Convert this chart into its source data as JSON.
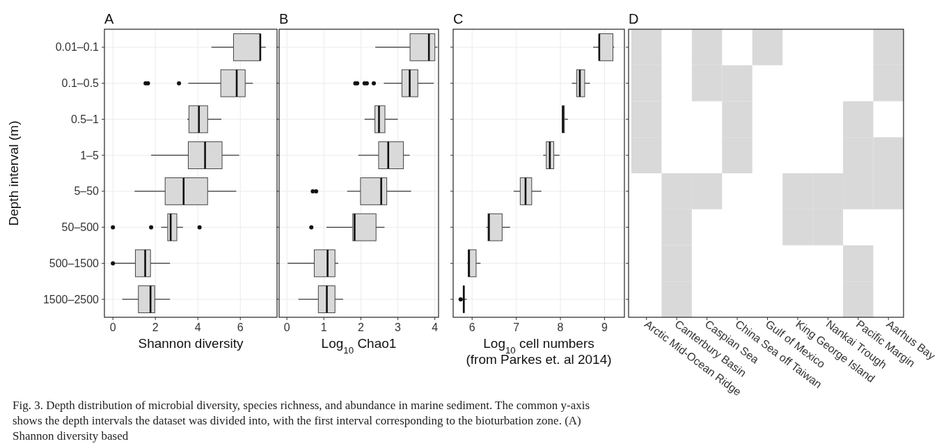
{
  "chart_data": [
    {
      "type": "box",
      "orientation": "horizontal",
      "title": "A",
      "xlabel": "Shannon diversity",
      "ylabel": "Depth interval (m)",
      "color": "#d9d9d9",
      "grid": true,
      "categories": [
        "0.01–0.1",
        "0.1–0.5",
        "0.5–1",
        "1–5",
        "5–50",
        "50–500",
        "500–1500",
        "1500–2500"
      ],
      "xlim": [
        -0.4,
        7.73
      ],
      "xticks": [
        0,
        2,
        4,
        6
      ],
      "boxes": [
        {
          "low": 4.64,
          "q1": 5.68,
          "median": 6.94,
          "q3": 6.94,
          "high": 7.2
        },
        {
          "low": 3.55,
          "q1": 5.08,
          "median": 5.83,
          "q3": 6.23,
          "high": 6.59,
          "outliers": [
            1.54,
            1.65,
            3.11
          ]
        },
        {
          "low": 3.5,
          "q1": 3.58,
          "median": 4.05,
          "q3": 4.46,
          "high": 5.11
        },
        {
          "low": 1.8,
          "q1": 3.55,
          "median": 4.34,
          "q3": 5.14,
          "high": 5.95
        },
        {
          "low": 1.02,
          "q1": 2.46,
          "median": 3.33,
          "q3": 4.46,
          "high": 5.81
        },
        {
          "low": 2.27,
          "q1": 2.58,
          "median": 2.72,
          "q3": 3.01,
          "high": 3.3,
          "outliers": [
            0,
            1.8,
            4.08
          ]
        },
        {
          "low": 0.02,
          "q1": 1.06,
          "median": 1.52,
          "q3": 1.77,
          "high": 2.69,
          "outliers": [
            0
          ]
        },
        {
          "low": 0.44,
          "q1": 1.2,
          "median": 1.77,
          "q3": 1.97,
          "high": 2.69
        }
      ],
      "annotations": [
        "Fig. 3. Depth distribution of microbial diversity, species richness, and abundance in marine sediment. The common y-axis shows the depth intervals the dataset was divided into, with the first interval corresponding to the bioturbation zone. (A) Shannon diversity based"
      ]
    },
    {
      "type": "box",
      "orientation": "horizontal",
      "title": "B",
      "xlabel": "Log$_{10}$ Chao1",
      "color": "#d9d9d9",
      "grid": true,
      "tick_labels": "x",
      "categories": [
        null,
        null,
        null,
        null,
        null,
        null,
        null,
        null
      ],
      "xlim": [
        -0.21,
        4.1
      ],
      "xticks": [
        0,
        1,
        2,
        3,
        4
      ],
      "boxes": [
        {
          "low": 2.39,
          "q1": 3.33,
          "median": 3.84,
          "q3": 4.0,
          "high": 4.07
        },
        {
          "low": 2.62,
          "q1": 3.11,
          "median": 3.32,
          "q3": 3.54,
          "high": 3.97,
          "outliers": [
            1.85,
            1.9,
            2.1,
            2.16,
            2.35
          ]
        },
        {
          "low": 2.1,
          "q1": 2.38,
          "median": 2.49,
          "q3": 2.65,
          "high": 3.0
        },
        {
          "low": 1.93,
          "q1": 2.48,
          "median": 2.74,
          "q3": 3.15,
          "high": 3.32
        },
        {
          "low": 1.63,
          "q1": 1.99,
          "median": 2.55,
          "q3": 2.7,
          "high": 3.36,
          "outliers": [
            0.7,
            0.79
          ]
        },
        {
          "low": 1.07,
          "q1": 1.78,
          "median": 1.83,
          "q3": 2.41,
          "high": 2.64,
          "outliers": [
            0.66
          ]
        },
        {
          "low": 0.02,
          "q1": 0.74,
          "median": 1.1,
          "q3": 1.3,
          "high": 1.39
        },
        {
          "low": 0.31,
          "q1": 0.85,
          "median": 1.08,
          "q3": 1.3,
          "high": 1.52
        }
      ]
    },
    {
      "type": "box",
      "orientation": "horizontal",
      "title": "C",
      "xlabel": "Log$_{10}$ cell numbers\n(from Parkes et. al 2014)",
      "color": "#d9d9d9",
      "grid": true,
      "tick_labels": "x",
      "categories": [
        null,
        null,
        null,
        null,
        null,
        null,
        null,
        null
      ],
      "xlim": [
        5.57,
        9.45
      ],
      "xticks": [
        6,
        7,
        8,
        9
      ],
      "boxes": [
        {
          "low": 8.74,
          "q1": 8.88,
          "median": 8.88,
          "q3": 9.19,
          "high": 9.22
        },
        {
          "low": 8.26,
          "q1": 8.37,
          "median": 8.44,
          "q3": 8.55,
          "high": 8.67
        },
        {
          "low": 8.03,
          "q1": 8.04,
          "median": 8.06,
          "q3": 8.09,
          "high": 8.17
        },
        {
          "low": 7.61,
          "q1": 7.68,
          "median": 7.76,
          "q3": 7.85,
          "high": 7.98
        },
        {
          "low": 6.94,
          "q1": 7.09,
          "median": 7.21,
          "q3": 7.35,
          "high": 7.57
        },
        {
          "low": 6.32,
          "q1": 6.36,
          "median": 6.38,
          "q3": 6.68,
          "high": 6.86
        },
        {
          "low": 5.89,
          "q1": 5.91,
          "median": 5.93,
          "q3": 6.09,
          "high": 6.19
        },
        {
          "low": 5.76,
          "q1": 5.8,
          "median": 5.81,
          "q3": 5.82,
          "high": 5.88,
          "outliers": [
            5.74
          ]
        }
      ]
    },
    {
      "type": "heatmap",
      "title": "D",
      "color": "#d9d9d9",
      "tick_labels": "x",
      "categories": [
        "Arctic Mid-Ocean Ridge",
        "Canterbury Basin",
        "Caspian Sea",
        "China Sea off Taiwan",
        "Gulf of Mexico",
        "King George Island",
        "Nankai Trough",
        "Pacific Margin",
        "Aarhus Bay"
      ],
      "y_categories": [
        null,
        null,
        null,
        null,
        null,
        null,
        null,
        null
      ],
      "cells": [
        [
          true,
          false,
          true,
          false,
          true,
          false,
          false,
          false,
          true
        ],
        [
          true,
          false,
          true,
          true,
          false,
          false,
          false,
          false,
          true
        ],
        [
          true,
          false,
          false,
          true,
          false,
          false,
          false,
          true,
          false
        ],
        [
          true,
          false,
          false,
          true,
          false,
          false,
          false,
          true,
          true
        ],
        [
          false,
          true,
          true,
          false,
          false,
          true,
          true,
          true,
          true
        ],
        [
          false,
          true,
          false,
          false,
          false,
          true,
          true,
          false,
          false
        ],
        [
          false,
          true,
          false,
          false,
          false,
          false,
          false,
          true,
          false
        ],
        [
          false,
          true,
          false,
          false,
          false,
          false,
          false,
          true,
          false
        ]
      ]
    }
  ]
}
